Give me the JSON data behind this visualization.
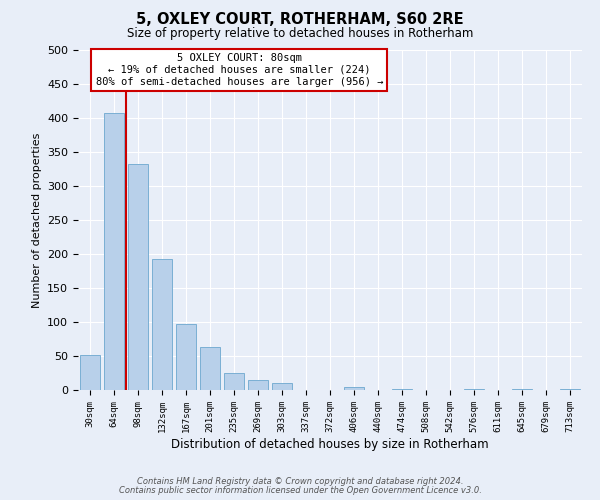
{
  "title": "5, OXLEY COURT, ROTHERHAM, S60 2RE",
  "subtitle": "Size of property relative to detached houses in Rotherham",
  "xlabel": "Distribution of detached houses by size in Rotherham",
  "ylabel": "Number of detached properties",
  "bar_labels": [
    "30sqm",
    "64sqm",
    "98sqm",
    "132sqm",
    "167sqm",
    "201sqm",
    "235sqm",
    "269sqm",
    "303sqm",
    "337sqm",
    "372sqm",
    "406sqm",
    "440sqm",
    "474sqm",
    "508sqm",
    "542sqm",
    "576sqm",
    "611sqm",
    "645sqm",
    "679sqm",
    "713sqm"
  ],
  "bar_values": [
    52,
    407,
    332,
    193,
    97,
    63,
    25,
    14,
    10,
    0,
    0,
    5,
    0,
    2,
    0,
    0,
    2,
    0,
    2,
    0,
    2
  ],
  "bar_color": "#b8d0ea",
  "bar_edge_color": "#7aafd4",
  "ylim": [
    0,
    500
  ],
  "yticks": [
    0,
    50,
    100,
    150,
    200,
    250,
    300,
    350,
    400,
    450,
    500
  ],
  "vline_color": "#cc0000",
  "annotation_title": "5 OXLEY COURT: 80sqm",
  "annotation_line1": "← 19% of detached houses are smaller (224)",
  "annotation_line2": "80% of semi-detached houses are larger (956) →",
  "annotation_box_color": "#ffffff",
  "annotation_box_edge": "#cc0000",
  "footer1": "Contains HM Land Registry data © Crown copyright and database right 2024.",
  "footer2": "Contains public sector information licensed under the Open Government Licence v3.0.",
  "background_color": "#e8eef8",
  "grid_color": "#ffffff"
}
